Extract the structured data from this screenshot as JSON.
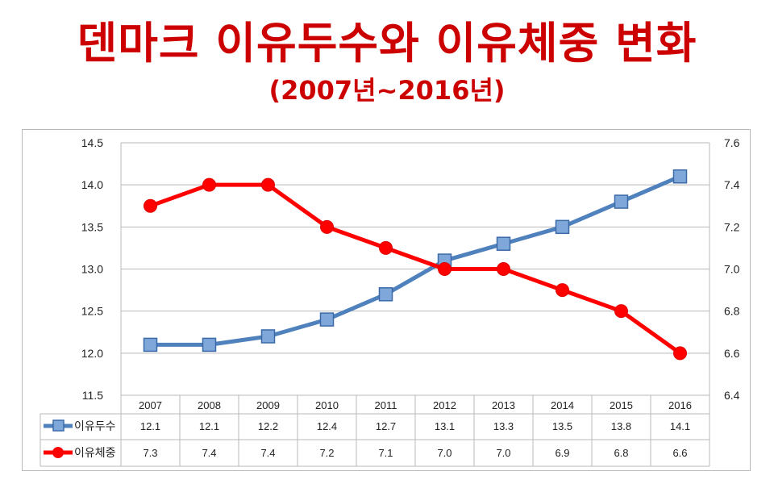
{
  "title": "덴마크 이유두수와 이유체중 변화",
  "subtitle": "(2007년~2016년)",
  "chart_data": {
    "type": "line",
    "categories": [
      "2007",
      "2008",
      "2009",
      "2010",
      "2011",
      "2012",
      "2013",
      "2014",
      "2015",
      "2016"
    ],
    "y_left": {
      "ylim": [
        11.5,
        14.5
      ],
      "ticks": [
        "11.5",
        "12.0",
        "12.5",
        "13.0",
        "13.5",
        "14.0",
        "14.5"
      ]
    },
    "y_right": {
      "ylim": [
        6.4,
        7.6
      ],
      "ticks": [
        "6.4",
        "6.6",
        "6.8",
        "7.0",
        "7.2",
        "7.4",
        "7.6"
      ]
    },
    "grid": true,
    "legend": "bottom data table",
    "series": [
      {
        "name": "이유두수",
        "axis": "left",
        "color": "#4f81bd",
        "marker": "square",
        "values": [
          12.1,
          12.1,
          12.2,
          12.4,
          12.7,
          13.1,
          13.3,
          13.5,
          13.8,
          14.1
        ],
        "labels": [
          "12.1",
          "12.1",
          "12.2",
          "12.4",
          "12.7",
          "13.1",
          "13.3",
          "13.5",
          "13.8",
          "14.1"
        ]
      },
      {
        "name": "이유체중",
        "axis": "right",
        "color": "#ff0000",
        "marker": "circle",
        "values": [
          7.3,
          7.4,
          7.4,
          7.2,
          7.1,
          7.0,
          7.0,
          6.9,
          6.8,
          6.6
        ],
        "labels": [
          "7.3",
          "7.4",
          "7.4",
          "7.2",
          "7.1",
          "7.0",
          "7.0",
          "6.9",
          "6.8",
          "6.6"
        ]
      }
    ]
  }
}
